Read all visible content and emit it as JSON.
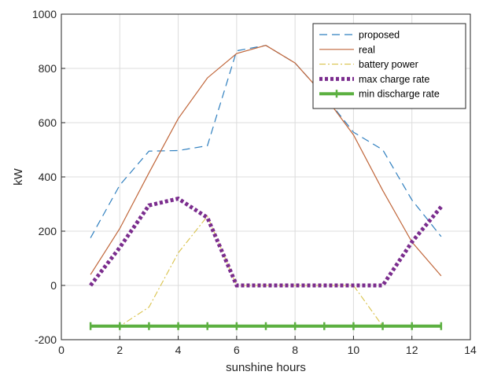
{
  "chart_data": {
    "type": "line",
    "xlabel": "sunshine hours",
    "ylabel": "kW",
    "xlim": [
      0,
      14
    ],
    "ylim": [
      -200,
      1000
    ],
    "xticks": [
      "0",
      "2",
      "4",
      "6",
      "8",
      "10",
      "12",
      "14"
    ],
    "yticks": [
      "-200",
      "0",
      "200",
      "400",
      "600",
      "800",
      "1000"
    ],
    "grid": true,
    "legend_position": "top-right",
    "series": [
      {
        "name": "proposed",
        "style": "dashed",
        "color": "#2f7fbf",
        "x": [
          1,
          2,
          3,
          4,
          5,
          6,
          7,
          8,
          9,
          10,
          11,
          12,
          13
        ],
        "y": [
          175,
          370,
          495,
          497,
          515,
          865,
          885,
          820,
          700,
          565,
          500,
          315,
          180
        ]
      },
      {
        "name": "real",
        "style": "solid",
        "color": "#c0663a",
        "x": [
          1,
          2,
          3,
          4,
          5,
          6,
          7,
          8,
          9,
          10,
          11,
          12,
          13
        ],
        "y": [
          40,
          210,
          415,
          615,
          765,
          855,
          885,
          820,
          700,
          555,
          350,
          160,
          35
        ]
      },
      {
        "name": "battery power",
        "style": "dashdot",
        "color": "#d9c24a",
        "x": [
          1,
          2,
          3,
          4,
          5,
          6,
          7,
          8,
          9,
          10,
          11,
          12,
          13
        ],
        "y": [
          -150,
          -150,
          -80,
          120,
          255,
          0,
          0,
          0,
          0,
          0,
          -150,
          -150,
          -150
        ]
      },
      {
        "name": "max charge rate",
        "style": "dotted-thick",
        "color": "#7b2d8e",
        "x": [
          1,
          2,
          3,
          4,
          5,
          6,
          7,
          8,
          9,
          10,
          11,
          12,
          13
        ],
        "y": [
          0,
          140,
          295,
          320,
          250,
          0,
          0,
          0,
          0,
          0,
          0,
          160,
          290
        ]
      },
      {
        "name": "min discharge rate",
        "style": "solid-thick-markers",
        "color": "#5cb041",
        "x": [
          1,
          2,
          3,
          4,
          5,
          6,
          7,
          8,
          9,
          10,
          11,
          12,
          13
        ],
        "y": [
          -150,
          -150,
          -150,
          -150,
          -150,
          -150,
          -150,
          -150,
          -150,
          -150,
          -150,
          -150,
          -150
        ]
      }
    ]
  }
}
